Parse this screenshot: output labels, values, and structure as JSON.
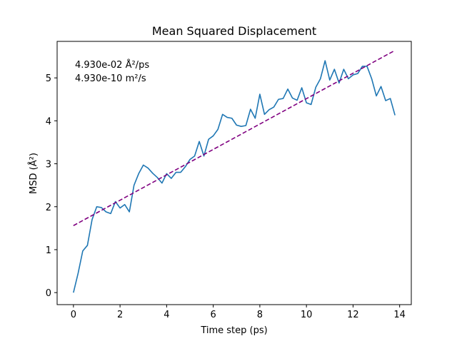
{
  "chart_data": {
    "type": "line",
    "title": "Mean Squared Displacement",
    "xlabel": "Time step (ps)",
    "ylabel": "MSD (Å²)",
    "xlim": [
      -0.7,
      14.5
    ],
    "ylim": [
      -0.28,
      5.85
    ],
    "xticks": [
      0,
      2,
      4,
      6,
      8,
      10,
      12,
      14
    ],
    "yticks": [
      0,
      1,
      2,
      3,
      4,
      5
    ],
    "grid": false,
    "legend": "none",
    "annotations": [
      "4.930e-02 Å²/ps",
      "4.930e-10 m²/s"
    ],
    "series": [
      {
        "color": "#1f77b4",
        "style": "solid",
        "x": [
          0.0,
          0.2,
          0.4,
          0.6,
          0.8,
          1.0,
          1.2,
          1.4,
          1.6,
          1.8,
          2.0,
          2.2,
          2.4,
          2.6,
          2.8,
          3.0,
          3.2,
          3.4,
          3.6,
          3.8,
          4.0,
          4.2,
          4.4,
          4.6,
          4.8,
          5.0,
          5.2,
          5.4,
          5.6,
          5.8,
          6.0,
          6.2,
          6.4,
          6.6,
          6.8,
          7.0,
          7.2,
          7.4,
          7.6,
          7.8,
          8.0,
          8.2,
          8.4,
          8.6,
          8.8,
          9.0,
          9.2,
          9.4,
          9.6,
          9.8,
          10.0,
          10.2,
          10.4,
          10.6,
          10.8,
          11.0,
          11.2,
          11.4,
          11.6,
          11.8,
          12.0,
          12.2,
          12.4,
          12.6,
          12.8,
          13.0,
          13.2,
          13.4,
          13.6,
          13.8
        ],
        "y": [
          0.0,
          0.45,
          0.97,
          1.1,
          1.7,
          2.0,
          1.98,
          1.88,
          1.84,
          2.12,
          1.97,
          2.05,
          1.88,
          2.5,
          2.77,
          2.97,
          2.9,
          2.78,
          2.68,
          2.55,
          2.77,
          2.66,
          2.8,
          2.8,
          2.93,
          3.1,
          3.18,
          3.52,
          3.18,
          3.57,
          3.65,
          3.8,
          4.15,
          4.08,
          4.06,
          3.9,
          3.87,
          3.89,
          4.27,
          4.06,
          4.62,
          4.15,
          4.26,
          4.32,
          4.5,
          4.52,
          4.74,
          4.53,
          4.48,
          4.77,
          4.42,
          4.38,
          4.78,
          4.98,
          5.4,
          4.95,
          5.2,
          4.88,
          5.2,
          4.98,
          5.07,
          5.1,
          5.27,
          5.27,
          4.98,
          4.58,
          4.8,
          4.47,
          4.52,
          4.13
        ]
      },
      {
        "color": "#800080",
        "style": "dashed",
        "x": [
          0.0,
          13.8
        ],
        "y": [
          1.56,
          5.64
        ]
      }
    ]
  }
}
